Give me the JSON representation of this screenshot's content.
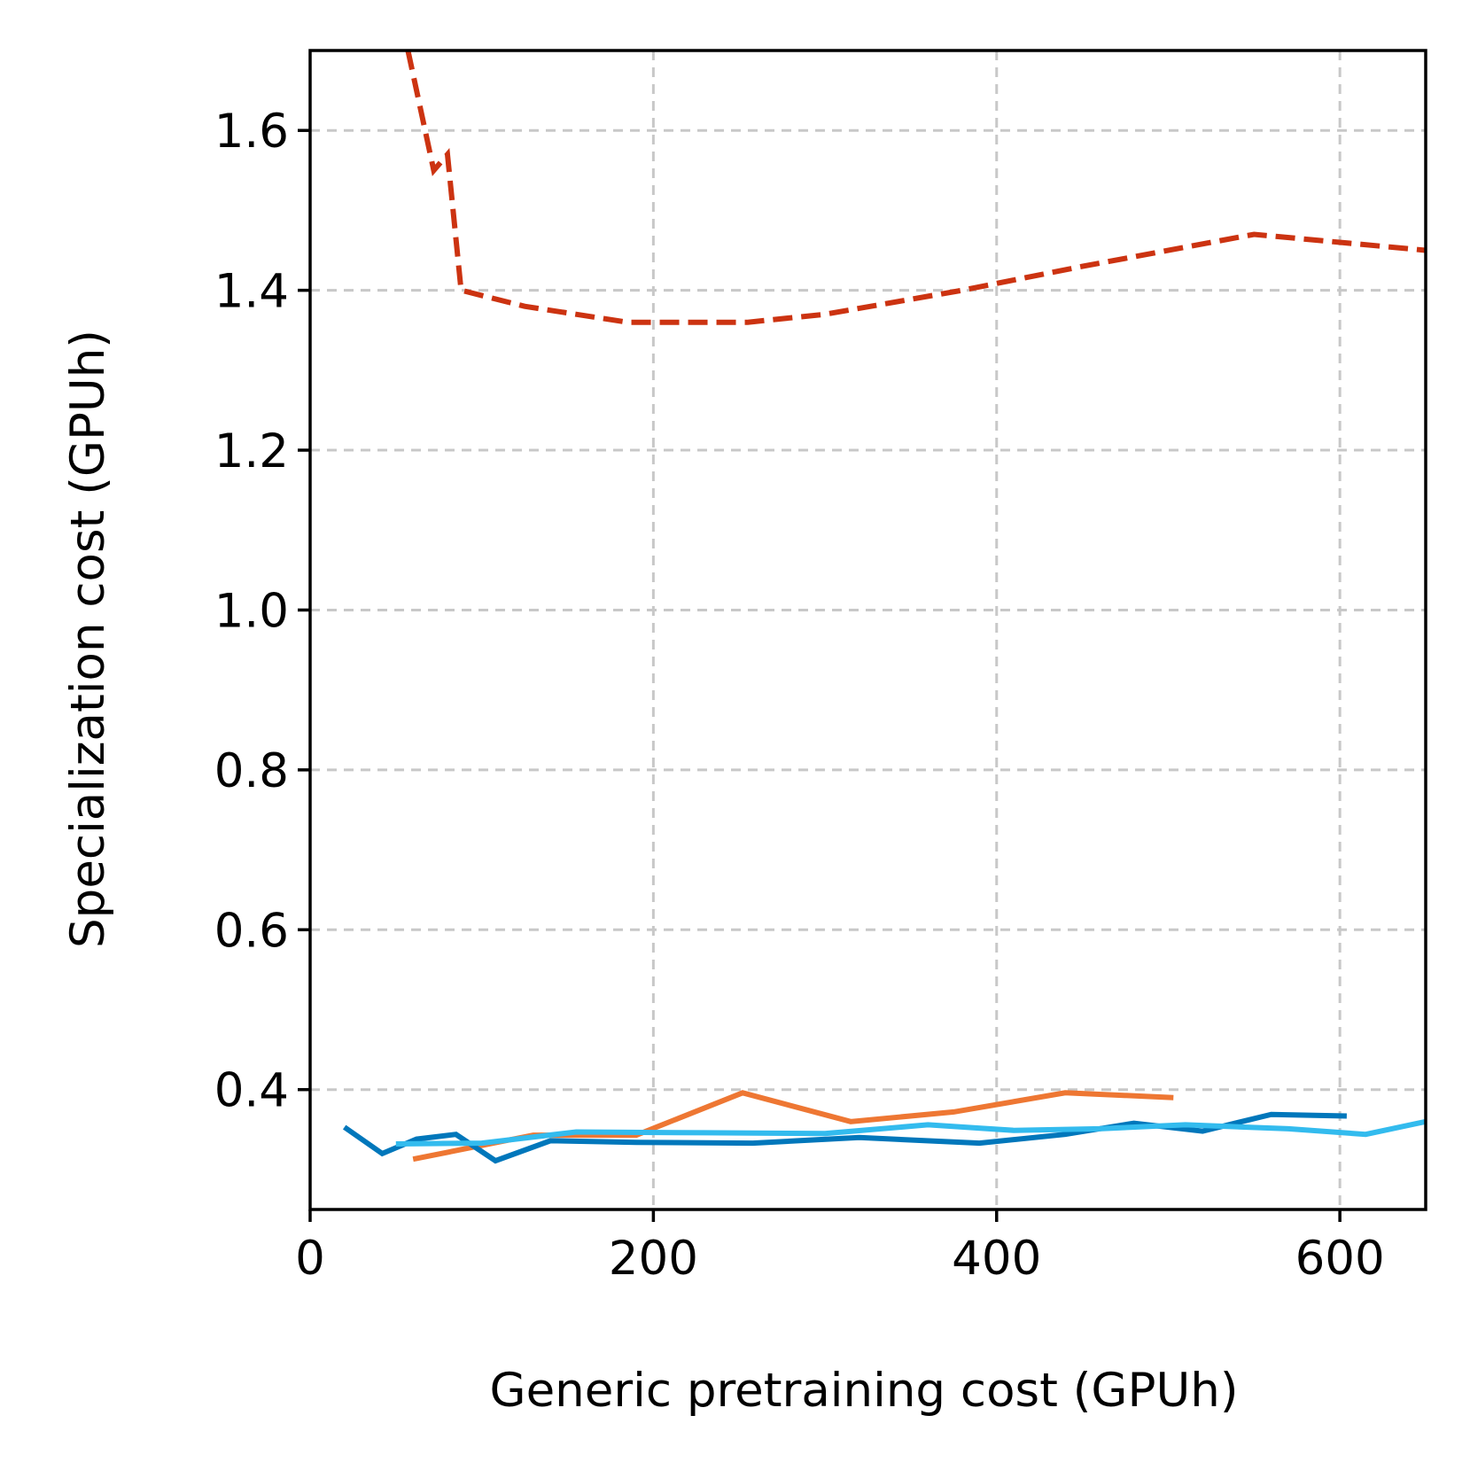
{
  "chart_data": {
    "type": "line",
    "title": "",
    "xlabel": "Generic pretraining cost (GPUh)",
    "ylabel": "Specialization cost (GPUh)",
    "xlim": [
      0,
      650
    ],
    "ylim": [
      0.25,
      1.7
    ],
    "xticks": [
      0,
      200,
      400,
      600
    ],
    "xtick_labels": [
      "0",
      "200",
      "400",
      "600"
    ],
    "yticks": [
      0.4,
      0.6,
      0.8,
      1.0,
      1.2,
      1.4,
      1.6
    ],
    "ytick_labels": [
      "0.4",
      "0.6",
      "0.8",
      "1.0",
      "1.2",
      "1.4",
      "1.6"
    ],
    "grid": true,
    "series": [
      {
        "name": "red-dashed",
        "color": "#cc3311",
        "dashed": true,
        "x": [
          57,
          72,
          80,
          88,
          125,
          185,
          255,
          300,
          380,
          450,
          550,
          650
        ],
        "y": [
          1.7,
          1.55,
          1.57,
          1.4,
          1.38,
          1.36,
          1.36,
          1.37,
          1.4,
          1.43,
          1.47,
          1.45
        ]
      },
      {
        "name": "orange",
        "color": "#ee7733",
        "dashed": false,
        "x": [
          60,
          130,
          190,
          252,
          315,
          375,
          440,
          503
        ],
        "y": [
          0.313,
          0.343,
          0.343,
          0.396,
          0.36,
          0.372,
          0.396,
          0.39
        ]
      },
      {
        "name": "blue",
        "color": "#0077bb",
        "dashed": false,
        "x": [
          20,
          42,
          62,
          85,
          108,
          140,
          190,
          258,
          320,
          390,
          440,
          480,
          520,
          560,
          604
        ],
        "y": [
          0.353,
          0.32,
          0.338,
          0.344,
          0.311,
          0.336,
          0.334,
          0.333,
          0.34,
          0.333,
          0.344,
          0.358,
          0.348,
          0.369,
          0.367
        ]
      },
      {
        "name": "light-blue",
        "color": "#33bbee",
        "dashed": false,
        "x": [
          50,
          100,
          155,
          230,
          300,
          360,
          410,
          460,
          510,
          570,
          615,
          650
        ],
        "y": [
          0.332,
          0.333,
          0.347,
          0.346,
          0.345,
          0.356,
          0.349,
          0.351,
          0.356,
          0.351,
          0.344,
          0.36
        ]
      }
    ]
  }
}
